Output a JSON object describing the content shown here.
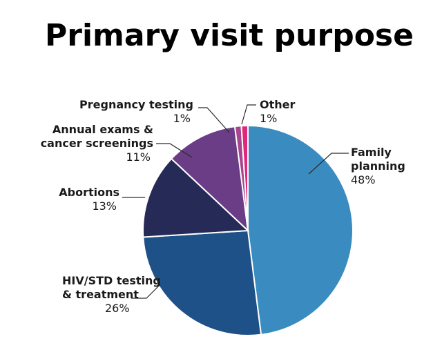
{
  "chart_data": {
    "type": "pie",
    "title": "Primary visit purpose",
    "slices": [
      {
        "name_lines": [
          "Family",
          "planning"
        ],
        "value": 48,
        "value_label": "48%",
        "color": "#3a8cc0"
      },
      {
        "name_lines": [
          "HIV/STD testing",
          "& treatment"
        ],
        "value": 26,
        "value_label": "26%",
        "color": "#1e5188"
      },
      {
        "name_lines": [
          "Abortions"
        ],
        "value": 13,
        "value_label": "13%",
        "color": "#262a56"
      },
      {
        "name_lines": [
          "Annual exams &",
          "cancer screenings"
        ],
        "value": 11,
        "value_label": "11%",
        "color": "#6a3d86"
      },
      {
        "name_lines": [
          "Pregnancy testing"
        ],
        "value": 1,
        "value_label": "1%",
        "color": "#a5468e"
      },
      {
        "name_lines": [
          "Other"
        ],
        "value": 1,
        "value_label": "1%",
        "color": "#e0287a"
      }
    ],
    "legend": "none",
    "label_placement": "outside-with-leader-lines"
  }
}
